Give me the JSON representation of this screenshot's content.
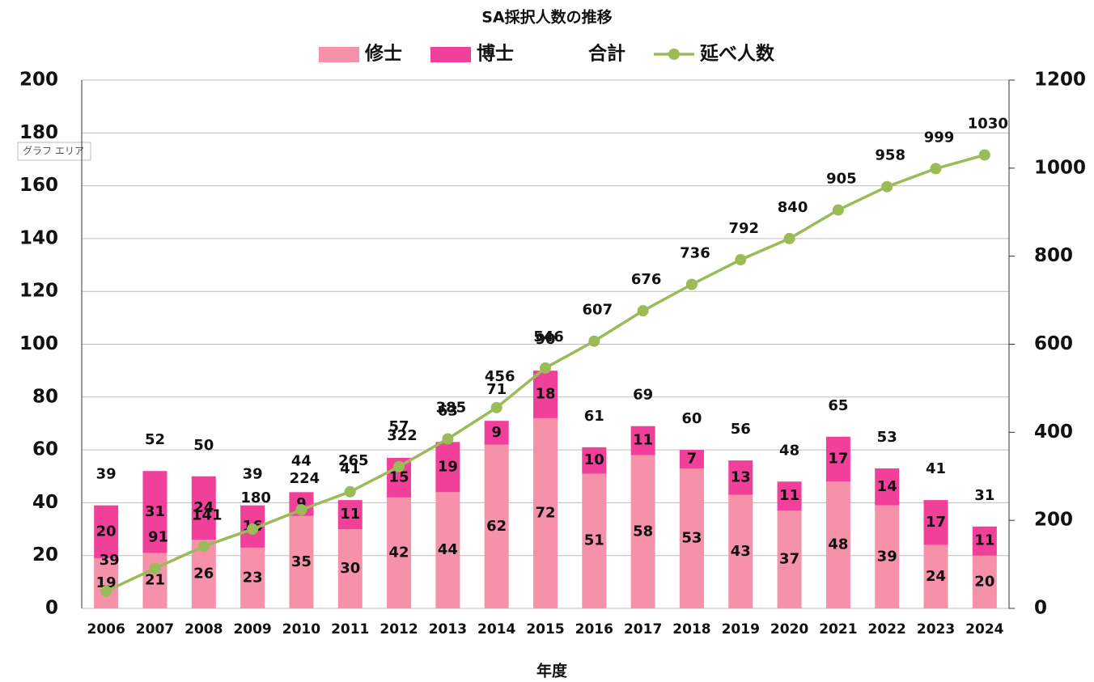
{
  "chart_data": {
    "type": "bar-line",
    "title": "SA採択人数の推移",
    "x_label": "年度",
    "categories": [
      "2006",
      "2007",
      "2008",
      "2009",
      "2010",
      "2011",
      "2012",
      "2013",
      "2014",
      "2015",
      "2016",
      "2017",
      "2018",
      "2019",
      "2020",
      "2021",
      "2022",
      "2023",
      "2024"
    ],
    "series": [
      {
        "name": "修士",
        "type": "stacked-bar",
        "color": "#f691aa",
        "values": [
          19,
          21,
          26,
          23,
          35,
          30,
          42,
          44,
          62,
          72,
          51,
          58,
          53,
          43,
          37,
          48,
          39,
          24,
          20
        ]
      },
      {
        "name": "博士",
        "type": "stacked-bar",
        "color": "#f0409a",
        "values": [
          20,
          31,
          24,
          16,
          9,
          11,
          15,
          19,
          9,
          18,
          10,
          11,
          7,
          13,
          11,
          17,
          14,
          17,
          11
        ]
      },
      {
        "name": "合計",
        "type": "label",
        "color": "transparent",
        "values": [
          39,
          52,
          50,
          39,
          44,
          41,
          57,
          63,
          71,
          90,
          61,
          69,
          60,
          56,
          48,
          65,
          53,
          41,
          31
        ]
      },
      {
        "name": "延べ人数",
        "type": "line",
        "axis": "y2",
        "color": "#9bbb59",
        "values": [
          39,
          91,
          141,
          180,
          224,
          265,
          322,
          385,
          456,
          546,
          607,
          676,
          736,
          792,
          840,
          905,
          958,
          999,
          1030
        ]
      }
    ],
    "ylim": [
      0,
      200
    ],
    "yticks": [
      0,
      20,
      40,
      60,
      80,
      100,
      120,
      140,
      160,
      180,
      200
    ],
    "y2lim": [
      0,
      1200
    ],
    "y2ticks": [
      0,
      200,
      400,
      600,
      800,
      1000,
      1200
    ],
    "grid": true,
    "legend": "top",
    "tooltip": "グラフ エリア"
  }
}
